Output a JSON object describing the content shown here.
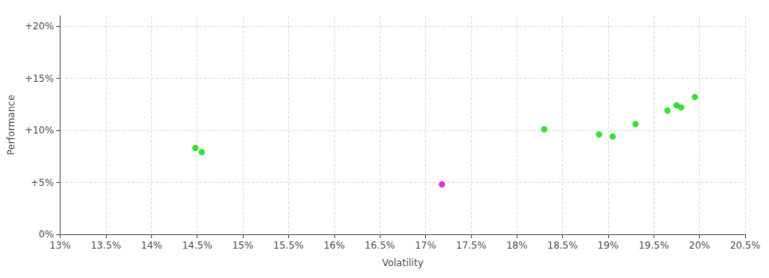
{
  "chart_data": {
    "type": "scatter",
    "xlabel": "Volatility",
    "ylabel": "Performance",
    "xlim": [
      0.13,
      0.205
    ],
    "ylim": [
      0.0,
      0.21
    ],
    "xticks": [
      {
        "value": 0.13,
        "label": "13%"
      },
      {
        "value": 0.135,
        "label": "13.5%"
      },
      {
        "value": 0.14,
        "label": "14%"
      },
      {
        "value": 0.145,
        "label": "14.5%"
      },
      {
        "value": 0.15,
        "label": "15%"
      },
      {
        "value": 0.155,
        "label": "15.5%"
      },
      {
        "value": 0.16,
        "label": "16%"
      },
      {
        "value": 0.165,
        "label": "16.5%"
      },
      {
        "value": 0.17,
        "label": "17%"
      },
      {
        "value": 0.175,
        "label": "17.5%"
      },
      {
        "value": 0.18,
        "label": "18%"
      },
      {
        "value": 0.185,
        "label": "18.5%"
      },
      {
        "value": 0.19,
        "label": "19%"
      },
      {
        "value": 0.195,
        "label": "19.5%"
      },
      {
        "value": 0.2,
        "label": "20%"
      },
      {
        "value": 0.205,
        "label": "20.5%"
      }
    ],
    "yticks": [
      {
        "value": 0.0,
        "label": "0%"
      },
      {
        "value": 0.05,
        "label": "+5%"
      },
      {
        "value": 0.1,
        "label": "+10%"
      },
      {
        "value": 0.15,
        "label": "+15%"
      },
      {
        "value": 0.2,
        "label": "+20%"
      }
    ],
    "grid": true,
    "series": [
      {
        "color": "#00dd00",
        "x": [
          0.1448,
          0.1455,
          0.183,
          0.189,
          0.1905,
          0.193,
          0.1965,
          0.1975,
          0.198,
          0.1995
        ],
        "values": [
          0.083,
          0.079,
          0.101,
          0.096,
          0.094,
          0.106,
          0.119,
          0.124,
          0.122,
          0.132
        ]
      },
      {
        "color": "#dd00dd",
        "x": [
          0.1718
        ],
        "values": [
          0.048
        ]
      }
    ]
  }
}
